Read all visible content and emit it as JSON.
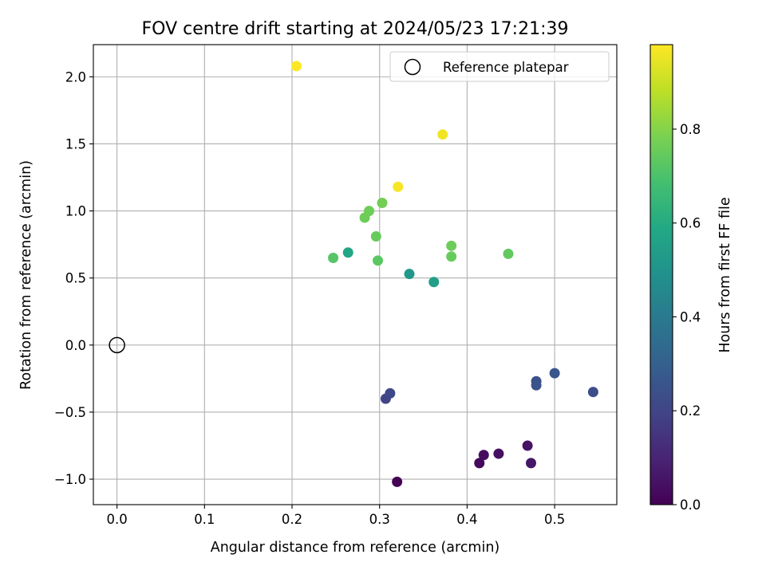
{
  "chart_data": {
    "type": "scatter",
    "title": "FOV centre drift starting at 2024/05/23 17:21:39",
    "xlabel": "Angular distance from reference (arcmin)",
    "ylabel": "Rotation from reference (arcmin)",
    "xlim": [
      -0.027,
      0.571
    ],
    "ylim": [
      -1.19,
      2.24
    ],
    "xticks": [
      0.0,
      0.1,
      0.2,
      0.3,
      0.4,
      0.5
    ],
    "xtick_labels": [
      "0.0",
      "0.1",
      "0.2",
      "0.3",
      "0.4",
      "0.5"
    ],
    "yticks": [
      -1.0,
      -0.5,
      0.0,
      0.5,
      1.0,
      1.5,
      2.0
    ],
    "ytick_labels": [
      "−1.0",
      "−0.5",
      "0.0",
      "0.5",
      "1.0",
      "1.5",
      "2.0"
    ],
    "grid": true,
    "legend": {
      "position": "top-right",
      "entries": [
        "Reference platepar"
      ]
    },
    "reference_point": {
      "x": 0.0,
      "y": 0.0
    },
    "colorbar": {
      "label": "Hours from first FF file",
      "colormap": "viridis",
      "range": [
        0.0,
        0.98
      ],
      "ticks": [
        0.0,
        0.2,
        0.4,
        0.6,
        0.8
      ],
      "tick_labels": [
        "0.0",
        "0.2",
        "0.4",
        "0.6",
        "0.8"
      ]
    },
    "points": [
      {
        "x": 0.32,
        "y": -1.02,
        "hours": 0.0
      },
      {
        "x": 0.414,
        "y": -0.88,
        "hours": 0.02
      },
      {
        "x": 0.419,
        "y": -0.82,
        "hours": 0.03
      },
      {
        "x": 0.436,
        "y": -0.81,
        "hours": 0.04
      },
      {
        "x": 0.469,
        "y": -0.75,
        "hours": 0.05
      },
      {
        "x": 0.473,
        "y": -0.88,
        "hours": 0.06
      },
      {
        "x": 0.307,
        "y": -0.4,
        "hours": 0.2
      },
      {
        "x": 0.312,
        "y": -0.36,
        "hours": 0.21
      },
      {
        "x": 0.479,
        "y": -0.27,
        "hours": 0.24
      },
      {
        "x": 0.479,
        "y": -0.3,
        "hours": 0.25
      },
      {
        "x": 0.5,
        "y": -0.21,
        "hours": 0.26
      },
      {
        "x": 0.544,
        "y": -0.35,
        "hours": 0.23
      },
      {
        "x": 0.334,
        "y": 0.53,
        "hours": 0.52
      },
      {
        "x": 0.362,
        "y": 0.47,
        "hours": 0.55
      },
      {
        "x": 0.264,
        "y": 0.69,
        "hours": 0.58
      },
      {
        "x": 0.247,
        "y": 0.65,
        "hours": 0.72
      },
      {
        "x": 0.298,
        "y": 0.63,
        "hours": 0.73
      },
      {
        "x": 0.296,
        "y": 0.81,
        "hours": 0.75
      },
      {
        "x": 0.283,
        "y": 0.95,
        "hours": 0.76
      },
      {
        "x": 0.288,
        "y": 1.0,
        "hours": 0.76
      },
      {
        "x": 0.303,
        "y": 1.06,
        "hours": 0.77
      },
      {
        "x": 0.382,
        "y": 0.74,
        "hours": 0.76
      },
      {
        "x": 0.382,
        "y": 0.66,
        "hours": 0.75
      },
      {
        "x": 0.447,
        "y": 0.68,
        "hours": 0.74
      },
      {
        "x": 0.321,
        "y": 1.18,
        "hours": 0.97
      },
      {
        "x": 0.372,
        "y": 1.57,
        "hours": 0.96
      },
      {
        "x": 0.205,
        "y": 2.08,
        "hours": 0.98
      }
    ]
  }
}
